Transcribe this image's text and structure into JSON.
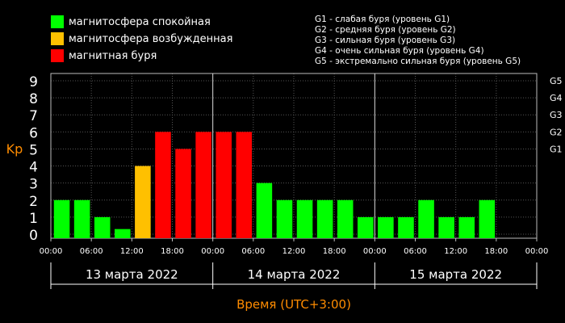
{
  "legend": [
    {
      "label": "магнитосфера спокойная",
      "color": "#00ff00"
    },
    {
      "label": "магнитосфера возбужденная",
      "color": "#ffc000"
    },
    {
      "label": "магнитная буря",
      "color": "#ff0000"
    }
  ],
  "g_legend": [
    "G1 - слабая буря (уровень G1)",
    "G2 - средняя буря (уровень G2)",
    "G3 - сильная буря (уровень G3)",
    "G4 - очень сильная буря (уровень G4)",
    "G5 - экстремально сильная буря (уровень G5)"
  ],
  "chart_data": {
    "type": "bar",
    "ylabel": "Kp",
    "xlabel": "Время (UTC+3:00)",
    "ylim": [
      0,
      9
    ],
    "y_ticks": [
      0,
      1,
      2,
      3,
      4,
      5,
      6,
      7,
      8,
      9
    ],
    "right_ticks": [
      {
        "label": "G1",
        "value": 5
      },
      {
        "label": "G2",
        "value": 6
      },
      {
        "label": "G3",
        "value": 7
      },
      {
        "label": "G4",
        "value": 8
      },
      {
        "label": "G5",
        "value": 9
      }
    ],
    "x_tick_labels": [
      "00:00",
      "06:00",
      "12:00",
      "18:00",
      "00:00",
      "06:00",
      "12:00",
      "18:00",
      "00:00",
      "06:00",
      "12:00",
      "18:00",
      "00:00"
    ],
    "days": [
      "13 марта 2022",
      "14 марта 2022",
      "15 марта 2022"
    ],
    "colors": {
      "quiet": "#00ff00",
      "active": "#ffc000",
      "storm": "#ff0000"
    },
    "values": [
      2,
      2,
      1,
      0.3,
      4,
      6,
      5,
      6,
      6,
      6,
      3,
      2,
      2,
      2,
      2,
      1,
      1,
      1,
      2,
      1,
      1,
      2
    ],
    "grid": true
  }
}
